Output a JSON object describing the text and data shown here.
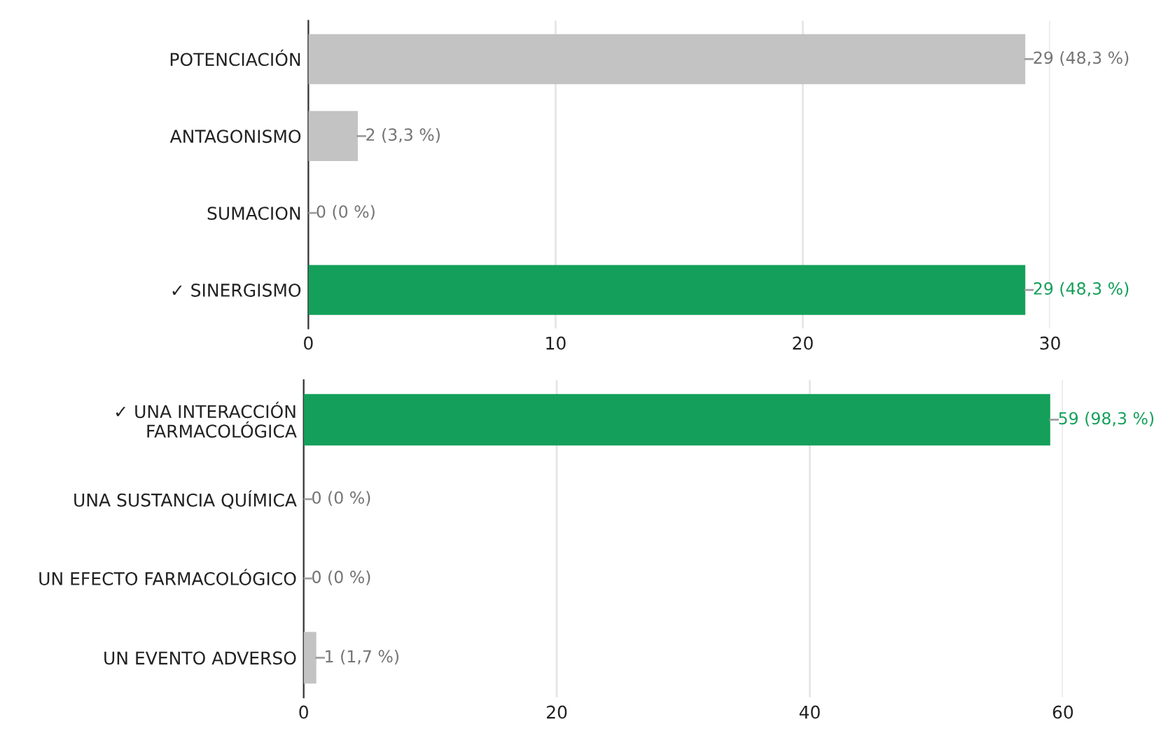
{
  "chart_data": [
    {
      "type": "bar",
      "orientation": "horizontal",
      "categories": [
        "POTENCIACIÓN",
        "ANTAGONISMO",
        "SUMACION",
        "✓ SINERGISMO"
      ],
      "values": [
        29,
        2,
        0,
        29
      ],
      "colors": [
        "#c3c3c3",
        "#c3c3c3",
        "#c3c3c3",
        "#14a05a"
      ],
      "value_labels": [
        "29 (48,3 %)",
        "2 (3,3 %)",
        "0 (0 %)",
        "29 (48,3 %)"
      ],
      "xlim": [
        0,
        30
      ],
      "xticks": [
        0,
        10,
        20,
        30
      ],
      "grid": "x"
    },
    {
      "type": "bar",
      "orientation": "horizontal",
      "categories": [
        "✓ UNA INTERACCIÓN\nFARMACOLÓGICA",
        "UNA SUSTANCIA QUÍMICA",
        "UN EFECTO FARMACOLÓGICO",
        "UN EVENTO ADVERSO"
      ],
      "values": [
        59,
        0,
        0,
        1
      ],
      "colors": [
        "#14a05a",
        "#c3c3c3",
        "#c3c3c3",
        "#c3c3c3"
      ],
      "value_labels": [
        "59 (98,3 %)",
        "0 (0 %)",
        "0 (0 %)",
        "1 (1,7 %)"
      ],
      "xlim": [
        0,
        60
      ],
      "xticks": [
        0,
        20,
        40,
        60
      ],
      "grid": "x"
    }
  ]
}
